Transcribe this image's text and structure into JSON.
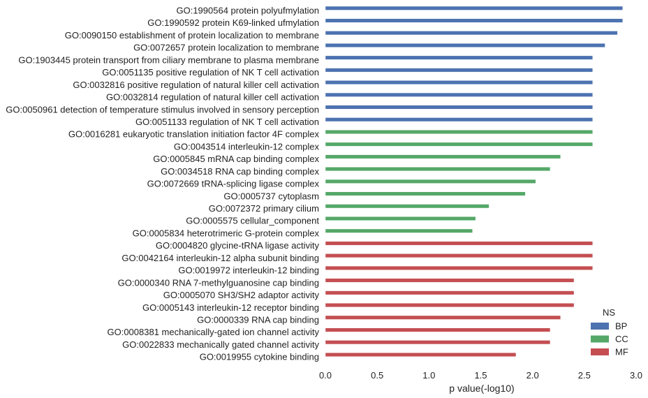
{
  "chart_data": {
    "type": "bar",
    "orientation": "horizontal",
    "title": "",
    "xlabel": "p value(-log10)",
    "ylabel": "",
    "xlim": [
      0,
      3
    ],
    "xticks": [
      "0.0",
      "0.5",
      "1.0",
      "1.5",
      "2.0",
      "2.5",
      "3.0"
    ],
    "grid": false,
    "legend": {
      "title": "NS",
      "placement": "lower-right",
      "entries": [
        {
          "name": "BP",
          "color": "#4c72b0"
        },
        {
          "name": "CC",
          "color": "#55a868"
        },
        {
          "name": "MF",
          "color": "#c44e52"
        }
      ]
    },
    "items": [
      {
        "label": "GO:1990564 protein polyufmylation",
        "ns": "BP",
        "value": 2.87
      },
      {
        "label": "GO:1990592 protein K69-linked ufmylation",
        "ns": "BP",
        "value": 2.87
      },
      {
        "label": "GO:0090150 establishment of protein localization to membrane",
        "ns": "BP",
        "value": 2.82
      },
      {
        "label": "GO:0072657 protein localization to membrane",
        "ns": "BP",
        "value": 2.7
      },
      {
        "label": "GO:1903445 protein transport from ciliary membrane to plasma membrane",
        "ns": "BP",
        "value": 2.58
      },
      {
        "label": "GO:0051135 positive regulation of NK T cell activation",
        "ns": "BP",
        "value": 2.58
      },
      {
        "label": "GO:0032816 positive regulation of natural killer cell activation",
        "ns": "BP",
        "value": 2.58
      },
      {
        "label": "GO:0032814 regulation of natural killer cell activation",
        "ns": "BP",
        "value": 2.58
      },
      {
        "label": "GO:0050961 detection of temperature stimulus involved in sensory perception",
        "ns": "BP",
        "value": 2.58
      },
      {
        "label": "GO:0051133 regulation of NK T cell activation",
        "ns": "BP",
        "value": 2.58
      },
      {
        "label": "GO:0016281 eukaryotic translation initiation factor 4F complex",
        "ns": "CC",
        "value": 2.58
      },
      {
        "label": "GO:0043514 interleukin-12 complex",
        "ns": "CC",
        "value": 2.58
      },
      {
        "label": "GO:0005845 mRNA cap binding complex",
        "ns": "CC",
        "value": 2.27
      },
      {
        "label": "GO:0034518 RNA cap binding complex",
        "ns": "CC",
        "value": 2.17
      },
      {
        "label": "GO:0072669 tRNA-splicing ligase complex",
        "ns": "CC",
        "value": 2.03
      },
      {
        "label": "GO:0005737 cytoplasm",
        "ns": "CC",
        "value": 1.93
      },
      {
        "label": "GO:0072372 primary cilium",
        "ns": "CC",
        "value": 1.58
      },
      {
        "label": "GO:0005575 cellular_component",
        "ns": "CC",
        "value": 1.45
      },
      {
        "label": "GO:0005834 heterotrimeric G-protein complex",
        "ns": "CC",
        "value": 1.42
      },
      {
        "label": "GO:0004820 glycine-tRNA ligase activity",
        "ns": "MF",
        "value": 2.58
      },
      {
        "label": "GO:0042164 interleukin-12 alpha subunit binding",
        "ns": "MF",
        "value": 2.58
      },
      {
        "label": "GO:0019972 interleukin-12 binding",
        "ns": "MF",
        "value": 2.58
      },
      {
        "label": "GO:0000340 RNA 7-methylguanosine cap binding",
        "ns": "MF",
        "value": 2.4
      },
      {
        "label": "GO:0005070 SH3/SH2 adaptor activity",
        "ns": "MF",
        "value": 2.4
      },
      {
        "label": "GO:0005143 interleukin-12 receptor binding",
        "ns": "MF",
        "value": 2.4
      },
      {
        "label": "GO:0000339 RNA cap binding",
        "ns": "MF",
        "value": 2.27
      },
      {
        "label": "GO:0008381 mechanically-gated ion channel activity",
        "ns": "MF",
        "value": 2.17
      },
      {
        "label": "GO:0022833 mechanically gated channel activity",
        "ns": "MF",
        "value": 2.17
      },
      {
        "label": "GO:0019955 cytokine binding",
        "ns": "MF",
        "value": 1.84
      }
    ]
  }
}
